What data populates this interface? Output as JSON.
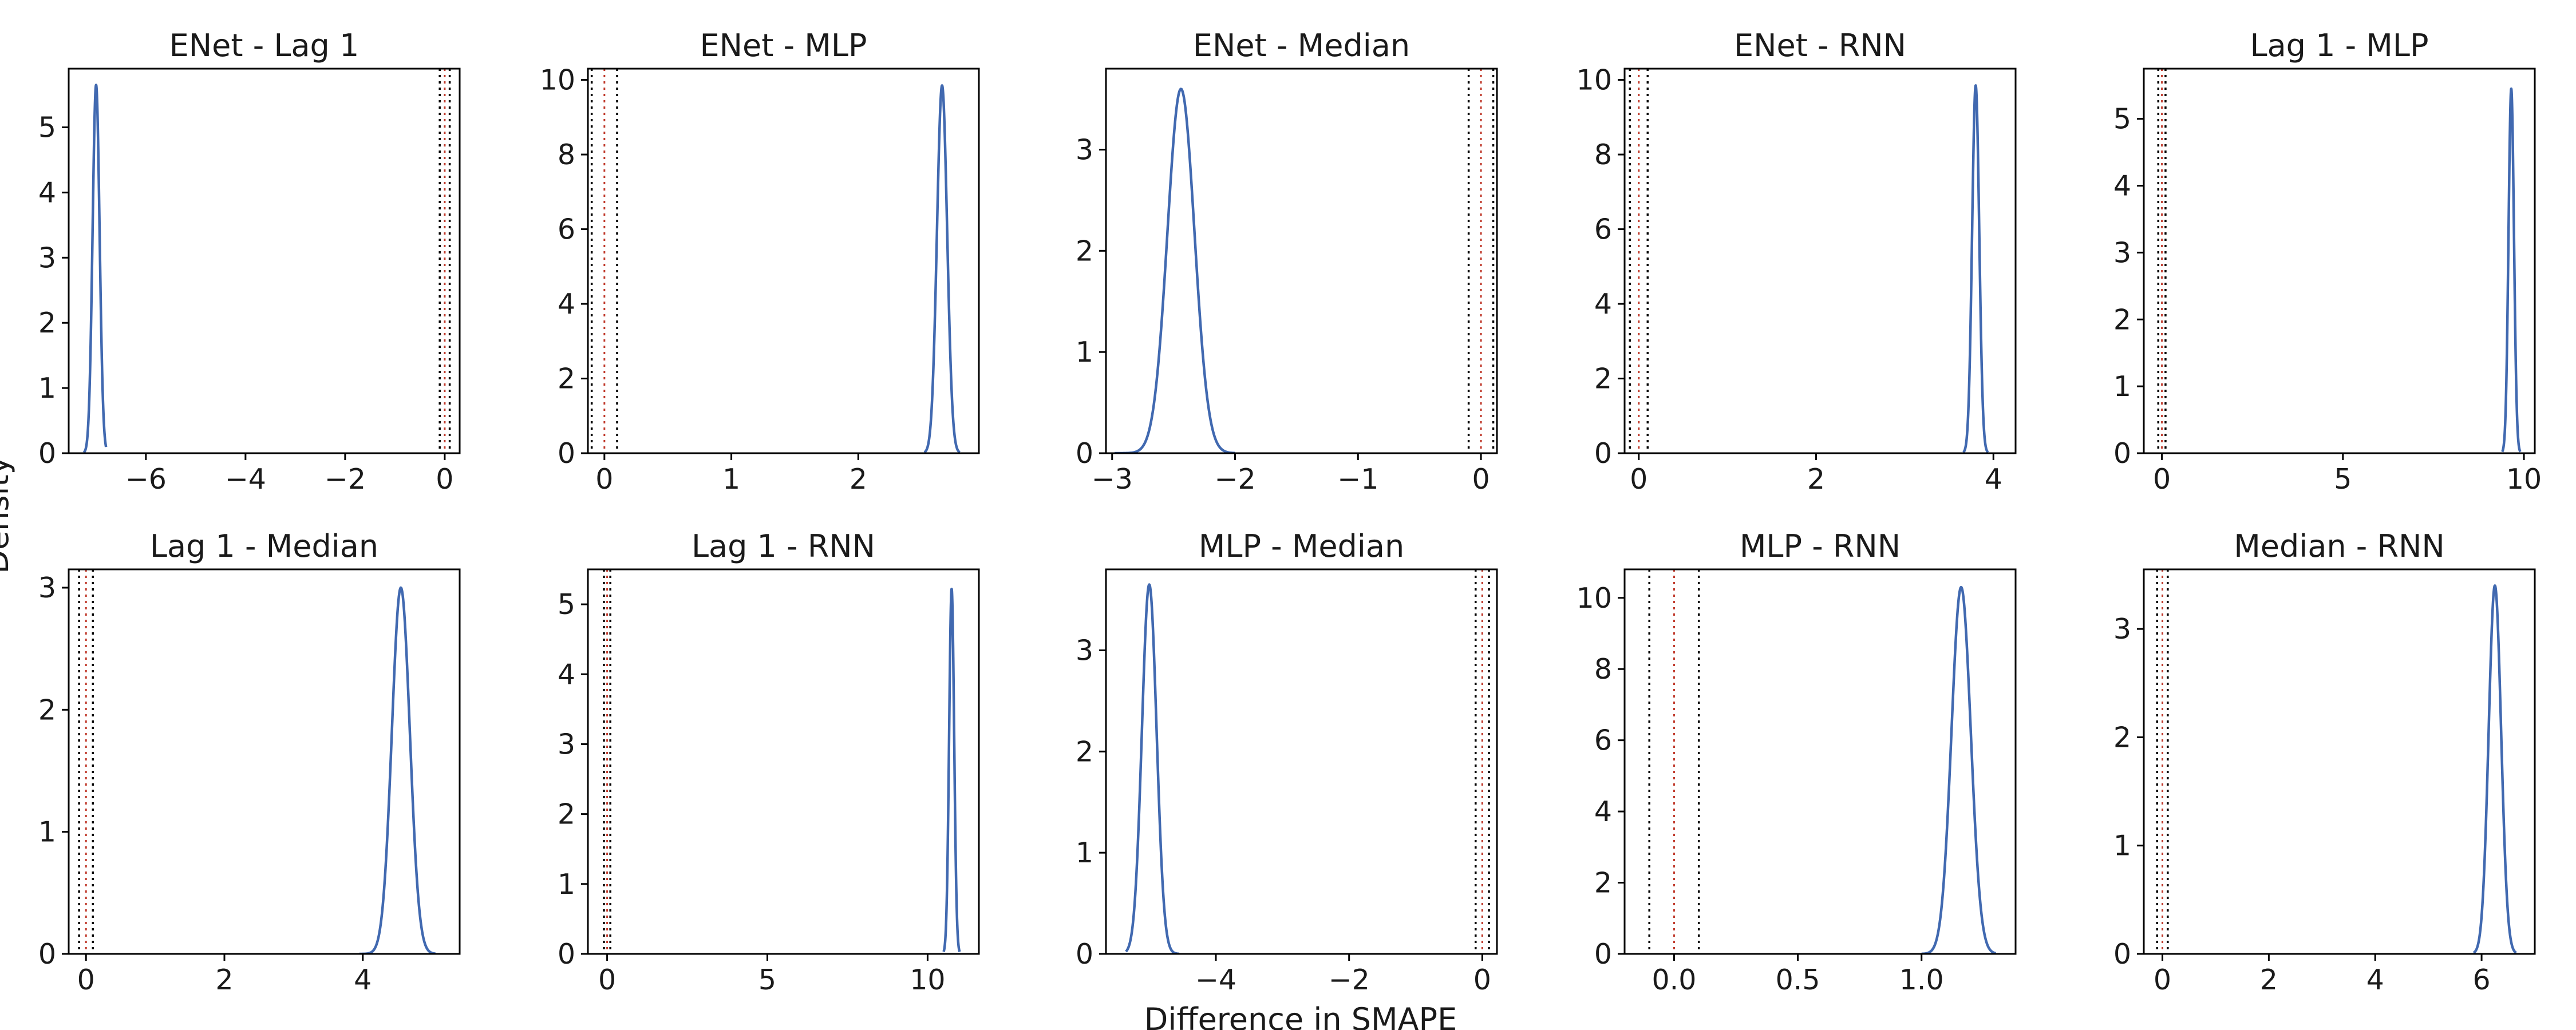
{
  "chart_data": {
    "type": "line",
    "xlabel": "Difference in SMAPE",
    "ylabel": "Density",
    "rope": [
      -0.1,
      0.1
    ],
    "colors": {
      "kde": "#4169b0",
      "rope_bound": "#000000",
      "zero_line": "#c0392b"
    },
    "panels": [
      {
        "title": "ENet - Lag 1",
        "xlim": [
          -7.55,
          0.3
        ],
        "ylim": [
          0,
          5.9
        ],
        "xticks": [
          -6,
          -4,
          -2,
          0
        ],
        "xtick_labels": [
          "−6",
          "−4",
          "−2",
          "0"
        ],
        "yticks": [
          0,
          1,
          2,
          3,
          4,
          5
        ],
        "peak_x": -7.0,
        "peak_density": 5.65,
        "spread": 0.07,
        "curve_range": [
          -7.25,
          -6.8
        ]
      },
      {
        "title": "ENet - MLP",
        "xlim": [
          -0.13,
          2.95
        ],
        "ylim": [
          0,
          10.3
        ],
        "xticks": [
          0,
          1,
          2
        ],
        "xtick_labels": [
          "0",
          "1",
          "2"
        ],
        "yticks": [
          0,
          2,
          4,
          6,
          8,
          10
        ],
        "peak_x": 2.66,
        "peak_density": 9.85,
        "spread": 0.04,
        "curve_range": [
          2.52,
          2.8
        ]
      },
      {
        "title": "ENet - Median",
        "xlim": [
          -3.05,
          0.13
        ],
        "ylim": [
          0,
          3.8
        ],
        "xticks": [
          -3,
          -2,
          -1,
          0
        ],
        "xtick_labels": [
          "−3",
          "−2",
          "−1",
          "0"
        ],
        "yticks": [
          0,
          1,
          2,
          3
        ],
        "peak_x": -2.44,
        "peak_density": 3.6,
        "spread": 0.11,
        "curve_range": [
          -2.98,
          -2.0
        ]
      },
      {
        "title": "ENet - RNN",
        "xlim": [
          -0.16,
          4.25
        ],
        "ylim": [
          0,
          10.3
        ],
        "xticks": [
          0,
          2,
          4
        ],
        "xtick_labels": [
          "0",
          "2",
          "4"
        ],
        "yticks": [
          0,
          2,
          4,
          6,
          8,
          10
        ],
        "peak_x": 3.8,
        "peak_density": 9.85,
        "spread": 0.04,
        "curve_range": [
          3.66,
          3.94
        ]
      },
      {
        "title": "Lag 1 - MLP",
        "xlim": [
          -0.5,
          10.3
        ],
        "ylim": [
          0,
          5.75
        ],
        "xticks": [
          0,
          5,
          10
        ],
        "xtick_labels": [
          "0",
          "5",
          "10"
        ],
        "yticks": [
          0,
          1,
          2,
          3,
          4,
          5
        ],
        "peak_x": 9.65,
        "peak_density": 5.45,
        "spread": 0.075,
        "curve_range": [
          9.4,
          9.9
        ]
      },
      {
        "title": "Lag 1 - Median",
        "xlim": [
          -0.25,
          5.4
        ],
        "ylim": [
          0,
          3.15
        ],
        "xticks": [
          0,
          2,
          4
        ],
        "xtick_labels": [
          "0",
          "2",
          "4"
        ],
        "yticks": [
          0,
          1,
          2,
          3
        ],
        "peak_x": 4.55,
        "peak_density": 3.0,
        "spread": 0.13,
        "curve_range": [
          3.95,
          5.05
        ]
      },
      {
        "title": "Lag 1 - RNN",
        "xlim": [
          -0.6,
          11.6
        ],
        "ylim": [
          0,
          5.5
        ],
        "xticks": [
          0,
          5,
          10
        ],
        "xtick_labels": [
          "0",
          "5",
          "10"
        ],
        "yticks": [
          0,
          1,
          2,
          3,
          4,
          5
        ],
        "peak_x": 10.75,
        "peak_density": 5.22,
        "spread": 0.078,
        "curve_range": [
          10.5,
          11.0
        ]
      },
      {
        "title": "MLP - Median",
        "xlim": [
          -5.65,
          0.22
        ],
        "ylim": [
          0,
          3.8
        ],
        "xticks": [
          -4,
          -2,
          0
        ],
        "xtick_labels": [
          "−4",
          "−2",
          "0"
        ],
        "yticks": [
          0,
          1,
          2,
          3
        ],
        "peak_x": -5.0,
        "peak_density": 3.65,
        "spread": 0.11,
        "curve_range": [
          -5.35,
          -4.55
        ]
      },
      {
        "title": "MLP - RNN",
        "xlim": [
          -0.2,
          1.38
        ],
        "ylim": [
          0,
          10.8
        ],
        "xticks": [
          0,
          0.5,
          1.0
        ],
        "xtick_labels": [
          "0.0",
          "0.5",
          "1.0"
        ],
        "yticks": [
          0,
          2,
          4,
          6,
          8,
          10
        ],
        "peak_x": 1.16,
        "peak_density": 10.3,
        "spread": 0.039,
        "curve_range": [
          1.0,
          1.3
        ]
      },
      {
        "title": "Median - RNN",
        "xlim": [
          -0.35,
          7.0
        ],
        "ylim": [
          0,
          3.55
        ],
        "xticks": [
          0,
          2,
          4,
          6
        ],
        "xtick_labels": [
          "0",
          "2",
          "4",
          "6"
        ],
        "yticks": [
          0,
          1,
          2,
          3
        ],
        "peak_x": 6.25,
        "peak_density": 3.4,
        "spread": 0.117,
        "curve_range": [
          5.85,
          6.65
        ]
      }
    ]
  }
}
